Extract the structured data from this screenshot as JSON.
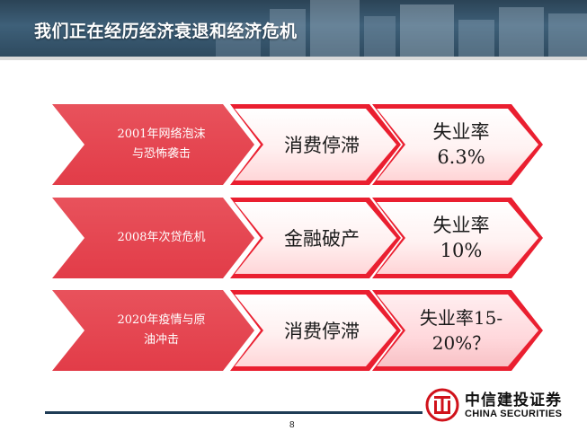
{
  "header": {
    "title": "我们正在经历经济衰退和经济危机"
  },
  "rows": [
    {
      "event_lines": [
        "2001年网络泡沫",
        "与恐怖袭击"
      ],
      "effect": "消费停滞",
      "unemployment_lines": [
        "失业率",
        "6.3%"
      ]
    },
    {
      "event_lines": [
        "2008年次贷危机"
      ],
      "effect": "金融破产",
      "unemployment_lines": [
        "失业率",
        "10%"
      ]
    },
    {
      "event_lines": [
        "2020年疫情与原",
        "油冲击"
      ],
      "effect": "消费停滞",
      "unemployment_lines": [
        "失业率15-",
        "20%？"
      ]
    }
  ],
  "footer": {
    "page_number": "8",
    "logo_cn": "中信建投证券",
    "logo_en": "CHINA SECURITIES"
  },
  "colors": {
    "header_bg": "#3e6079",
    "chevron_red": "#e23c48",
    "border_red": "#ea1f30",
    "footer_line": "#1f3c56"
  }
}
